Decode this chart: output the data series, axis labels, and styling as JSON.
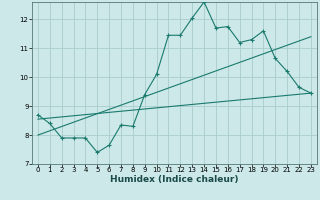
{
  "xlabel": "Humidex (Indice chaleur)",
  "bg_color": "#cce8e8",
  "grid_color": "#aacccc",
  "line_color": "#1a7a6e",
  "xlim": [
    -0.5,
    23.5
  ],
  "ylim": [
    7,
    12.6
  ],
  "yticks": [
    7,
    8,
    9,
    10,
    11,
    12
  ],
  "xticks": [
    0,
    1,
    2,
    3,
    4,
    5,
    6,
    7,
    8,
    9,
    10,
    11,
    12,
    13,
    14,
    15,
    16,
    17,
    18,
    19,
    20,
    21,
    22,
    23
  ],
  "line1_x": [
    0,
    1,
    2,
    3,
    4,
    5,
    6,
    7,
    8,
    9,
    10,
    11,
    12,
    13,
    14,
    15,
    16,
    17,
    18,
    19,
    20,
    21,
    22,
    23
  ],
  "line1_y": [
    8.7,
    8.4,
    7.9,
    7.9,
    7.9,
    7.4,
    7.65,
    8.35,
    8.3,
    9.4,
    10.1,
    11.45,
    11.45,
    12.05,
    12.6,
    11.7,
    11.75,
    11.2,
    11.3,
    11.6,
    10.65,
    10.2,
    9.65,
    9.45
  ],
  "line2_x": [
    0,
    23
  ],
  "line2_y": [
    8.55,
    9.45
  ],
  "line3_x": [
    0,
    23
  ],
  "line3_y": [
    8.0,
    11.4
  ]
}
